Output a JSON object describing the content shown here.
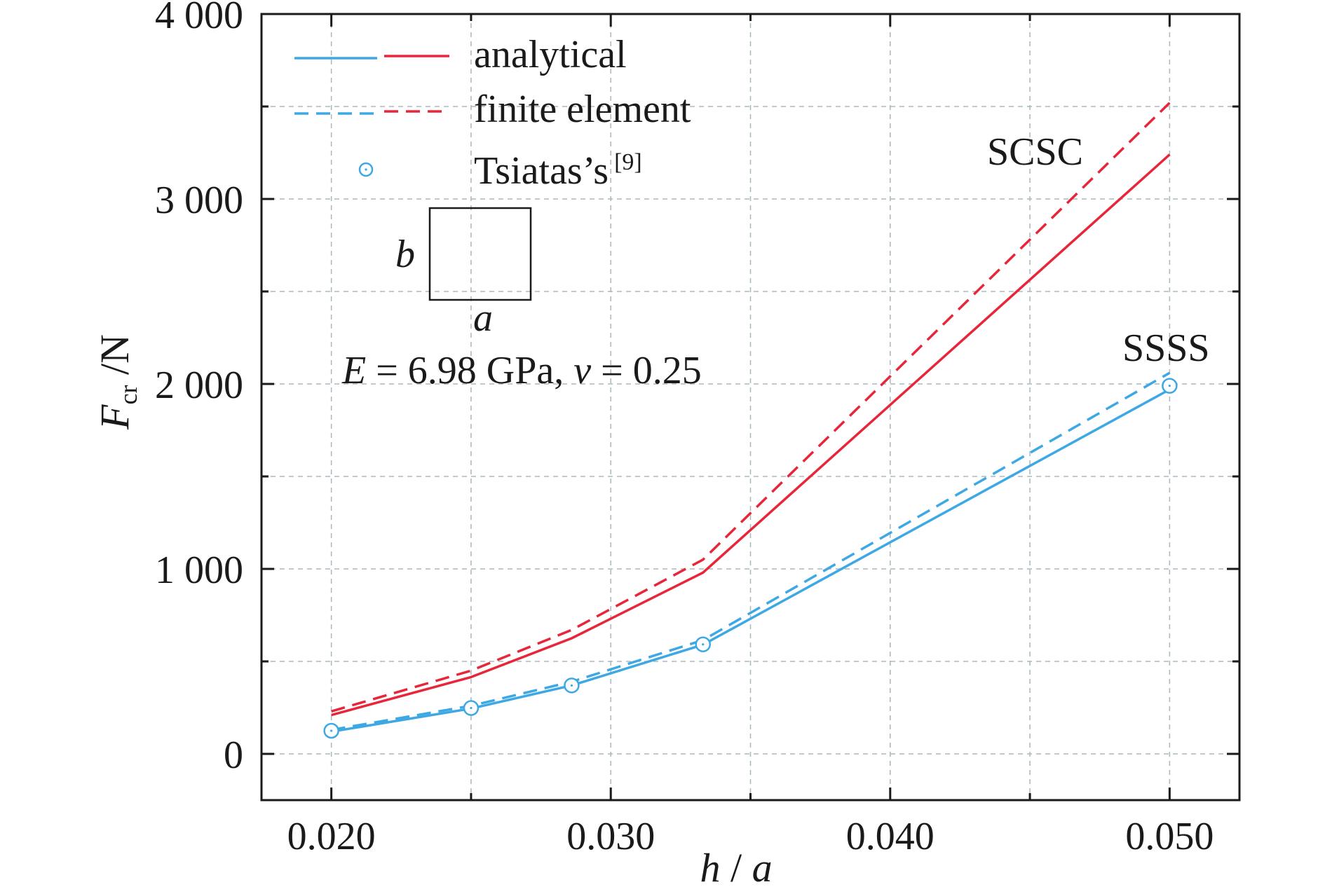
{
  "chart_data": {
    "type": "line",
    "xlabel": {
      "italic": "h",
      "rest": " / ",
      "italic2": "a"
    },
    "ylabel": {
      "main": "F",
      "sub": "cr",
      "rest": " /N"
    },
    "xlim": [
      0.0175,
      0.0525
    ],
    "ylim": [
      -250,
      4000
    ],
    "xticks": [
      0.02,
      0.03,
      0.04,
      0.05
    ],
    "xtick_labels": [
      "0.020",
      "0.030",
      "0.040",
      "0.050"
    ],
    "xminor": [
      0.025,
      0.035,
      0.045
    ],
    "yticks": [
      0,
      1000,
      2000,
      3000,
      4000
    ],
    "ytick_labels": [
      "0",
      "1 000",
      "2 000",
      "3 000",
      "4 000"
    ],
    "yminor": [
      500,
      1500,
      2500,
      3500
    ],
    "grid": true,
    "colors": {
      "blue": "#3ea8e5",
      "red": "#e8263a",
      "grid": "#a9b8bd"
    },
    "series": [
      {
        "name": "SCSC analytical",
        "color": "#e8263a",
        "dash": false,
        "x": [
          0.02,
          0.025,
          0.0286,
          0.0333,
          0.05
        ],
        "y": [
          210,
          415,
          625,
          980,
          3240
        ]
      },
      {
        "name": "SCSC finite element",
        "color": "#e8263a",
        "dash": true,
        "x": [
          0.02,
          0.025,
          0.0286,
          0.0333,
          0.05
        ],
        "y": [
          230,
          450,
          670,
          1050,
          3520
        ]
      },
      {
        "name": "SSSS analytical",
        "color": "#3ea8e5",
        "dash": false,
        "x": [
          0.02,
          0.025,
          0.0286,
          0.0333,
          0.05
        ],
        "y": [
          120,
          245,
          370,
          590,
          1970
        ]
      },
      {
        "name": "SSSS finite element",
        "color": "#3ea8e5",
        "dash": true,
        "x": [
          0.02,
          0.025,
          0.0286,
          0.0333,
          0.05
        ],
        "y": [
          130,
          260,
          390,
          615,
          2060
        ]
      }
    ],
    "markers": {
      "name": "Tsiatas’s",
      "color": "#3ea8e5",
      "x": [
        0.02,
        0.025,
        0.0286,
        0.0333,
        0.05
      ],
      "y": [
        125,
        248,
        370,
        592,
        1990
      ]
    },
    "legend": {
      "position": "top-left",
      "analytical": "analytical",
      "finite_element": "finite element",
      "tsiatas": "Tsiatas’s",
      "tsiatas_ref": "[9]"
    },
    "annotations": {
      "scsc": "SCSC",
      "ssss": "SSSS",
      "plate_b": "b",
      "plate_a": "a",
      "params": {
        "e": "E",
        "e_val": " = 6.98 GPa, ",
        "nu": "ν",
        "nu_val": " = 0.25"
      }
    }
  }
}
